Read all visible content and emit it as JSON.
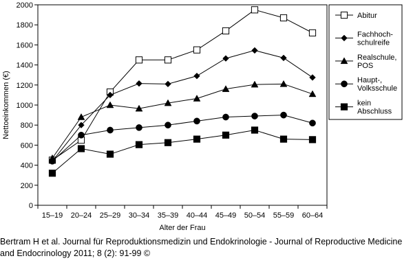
{
  "chart_data": {
    "type": "line",
    "title": "",
    "xlabel": "Alter der Frau",
    "ylabel": "Nettoeinkommen (€)",
    "ylim": [
      0,
      2000
    ],
    "yticks": [
      0,
      200,
      400,
      600,
      800,
      1000,
      1200,
      1400,
      1600,
      1800,
      2000
    ],
    "grid": false,
    "legend_position": "right",
    "categories": [
      "15–19",
      "20–24",
      "25–29",
      "30–34",
      "35–39",
      "40–44",
      "45–49",
      "50–54",
      "55–59",
      "60–64"
    ],
    "series": [
      {
        "name": "Abitur",
        "legend_lines": [
          "Abitur"
        ],
        "marker": "open-square",
        "values": [
          450,
          650,
          1130,
          1450,
          1450,
          1550,
          1740,
          1950,
          1870,
          1720
        ]
      },
      {
        "name": "Fachhoch-schulreife",
        "legend_lines": [
          "Fachhoch-",
          "schulreife"
        ],
        "marker": "diamond",
        "values": [
          440,
          800,
          1100,
          1215,
          1210,
          1290,
          1465,
          1545,
          1470,
          1275
        ]
      },
      {
        "name": "Realschule, POS",
        "legend_lines": [
          "Realschule,",
          "POS"
        ],
        "marker": "triangle",
        "values": [
          470,
          880,
          1000,
          965,
          1020,
          1065,
          1160,
          1205,
          1210,
          1110
        ]
      },
      {
        "name": "Haupt-, Volksschule",
        "legend_lines": [
          "Haupt-,",
          "Volksschule"
        ],
        "marker": "circle",
        "values": [
          440,
          700,
          750,
          775,
          800,
          840,
          880,
          890,
          900,
          820
        ]
      },
      {
        "name": "kein Abschluss",
        "legend_lines": [
          "kein",
          "Abschluss"
        ],
        "marker": "filled-square",
        "values": [
          320,
          565,
          510,
          605,
          625,
          660,
          700,
          750,
          660,
          655
        ]
      }
    ]
  },
  "caption": {
    "text": "Bertram H et al. Journal für Reproduktionsmedizin und Endokrinologie - Journal of Reproductive Medicine and Endocrinology 2011; 8 (2): 91-99 ©"
  },
  "colors": {
    "ink": "#000000",
    "background": "#ffffff"
  }
}
